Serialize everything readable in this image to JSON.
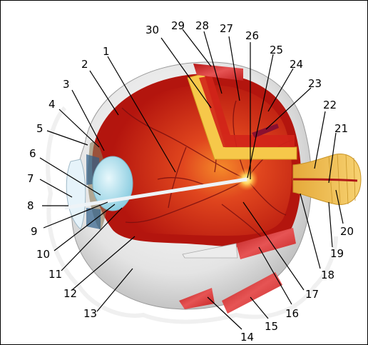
{
  "diagram": {
    "labels": [
      "1",
      "2",
      "3",
      "4",
      "5",
      "6",
      "7",
      "8",
      "9",
      "10",
      "11",
      "12",
      "13",
      "14",
      "15",
      "16",
      "17",
      "18",
      "19",
      "20",
      "21",
      "22",
      "23",
      "24",
      "25",
      "26",
      "27",
      "28",
      "29",
      "30"
    ]
  },
  "colors": {
    "sclera": "#dcdcdc",
    "choroid": "#c51d10",
    "vitreous": "#d42f1a",
    "retina_highlight": "#f2a23a",
    "optic_nerve": "#f3c25a",
    "muscle": "#d93a3a",
    "lens": "#aee0ee",
    "vessel": "#7a0f0f"
  }
}
